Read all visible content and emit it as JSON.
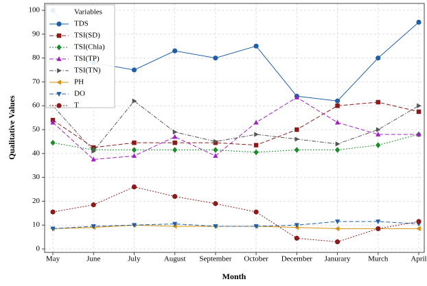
{
  "chart_data": {
    "type": "line",
    "x_label": "Month",
    "y_label": "Qualitative Values",
    "categories": [
      "May",
      "June",
      "July",
      "August",
      "September",
      "October",
      "December",
      "Janurary",
      "Murch",
      "April"
    ],
    "ylim": [
      0,
      100
    ],
    "yticks": [
      0,
      10,
      20,
      30,
      40,
      50,
      60,
      70,
      80,
      90,
      100
    ],
    "grid": true,
    "legend_title": "Variables",
    "legend": "upper left",
    "series": [
      {
        "name": "TDS",
        "color": "#1f5fa8",
        "marker": "circle",
        "dash": "solid",
        "values": [
          100,
          78,
          75,
          83,
          80,
          85,
          64,
          62,
          80,
          95
        ]
      },
      {
        "name": "TSI(SD)",
        "color": "#8b1a1a",
        "marker": "square",
        "dash": "dashed",
        "values": [
          54,
          42.5,
          44.5,
          44.5,
          44.5,
          43.5,
          50,
          60,
          61.5,
          57.5
        ]
      },
      {
        "name": "TSI(Chla)",
        "color": "#1a8b2a",
        "marker": "diamond",
        "dash": "dotted",
        "values": [
          44.5,
          41.5,
          41.5,
          41.5,
          41.5,
          40.5,
          41.5,
          41.5,
          43.5,
          48
        ]
      },
      {
        "name": "TSI(TP)",
        "color": "#a020c0",
        "marker": "triangle-up",
        "dash": "dashed",
        "values": [
          53,
          37.5,
          39,
          47,
          39,
          53,
          63.5,
          53,
          48,
          48
        ]
      },
      {
        "name": "TSI(TN)",
        "color": "#555555",
        "marker": "triangle-right",
        "dash": "dashdot",
        "values": [
          60,
          41,
          62,
          49,
          45,
          48,
          46,
          44,
          50,
          60
        ]
      },
      {
        "name": "PH",
        "color": "#d4900a",
        "marker": "triangle-left",
        "dash": "solid",
        "values": [
          8.5,
          9,
          10,
          9.5,
          9.5,
          9.5,
          9,
          8.5,
          8.5,
          8.5
        ]
      },
      {
        "name": "DO",
        "color": "#1f5fa8",
        "marker": "triangle-down",
        "dash": "dashed",
        "values": [
          8.5,
          9.5,
          10,
          10.5,
          9.5,
          9.5,
          10,
          11.5,
          11.5,
          10.5
        ]
      },
      {
        "name": "T",
        "color": "#8b1a1a",
        "marker": "circle",
        "dash": "dotted",
        "values": [
          15.5,
          18.5,
          26,
          22,
          19,
          15.5,
          4.5,
          3,
          8.5,
          11.5
        ]
      }
    ]
  }
}
